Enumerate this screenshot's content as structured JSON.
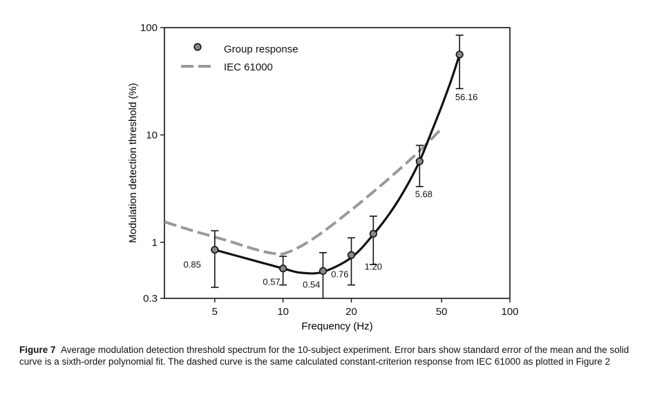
{
  "chart_data": {
    "type": "line",
    "xlabel": "Frequency (Hz)",
    "ylabel": "Modulation detection threshold (%)",
    "xscale": "log",
    "yscale": "log",
    "xlim": [
      3,
      100
    ],
    "ylim": [
      0.3,
      100
    ],
    "xticks": [
      5,
      10,
      20,
      50,
      100
    ],
    "yticks": [
      0.3,
      1,
      10,
      100
    ],
    "grid": false,
    "legend_position": "top-left",
    "series": [
      {
        "name": "Group response",
        "kind": "points-with-error-bars",
        "color": "#888888",
        "points": [
          {
            "x": 5,
            "y": 0.85,
            "err_low": 0.38,
            "err_high": 1.28,
            "label": "0.85"
          },
          {
            "x": 10,
            "y": 0.57,
            "err_low": 0.4,
            "err_high": 0.74,
            "label": "0.57"
          },
          {
            "x": 15,
            "y": 0.54,
            "err_low": 0.3,
            "err_high": 0.8,
            "label": "0.54"
          },
          {
            "x": 20,
            "y": 0.76,
            "err_low": 0.4,
            "err_high": 1.1,
            "label": "0.76"
          },
          {
            "x": 25,
            "y": 1.2,
            "err_low": 0.62,
            "err_high": 1.75,
            "label": "1.20"
          },
          {
            "x": 40,
            "y": 5.68,
            "err_low": 3.3,
            "err_high": 8.0,
            "label": "5.68"
          },
          {
            "x": 60,
            "y": 56.16,
            "err_low": 27.0,
            "err_high": 85.0,
            "label": "56.16"
          }
        ]
      },
      {
        "name": "Polynomial fit",
        "kind": "solid-curve",
        "color": "#111111",
        "x": [
          5,
          7,
          10,
          12,
          15,
          20,
          25,
          30,
          35,
          40,
          45,
          50,
          55,
          60
        ],
        "y": [
          0.85,
          0.7,
          0.57,
          0.52,
          0.53,
          0.72,
          1.18,
          1.95,
          3.3,
          5.7,
          10.5,
          18.5,
          32,
          56.16
        ]
      },
      {
        "name": "IEC 61000",
        "kind": "dashed-curve",
        "color": "#999999",
        "x": [
          3,
          4,
          5,
          6,
          7,
          8,
          9,
          10,
          12,
          15,
          20,
          25,
          30,
          40,
          50
        ],
        "y": [
          1.55,
          1.28,
          1.12,
          1.0,
          0.9,
          0.83,
          0.79,
          0.78,
          0.92,
          1.25,
          2.0,
          2.95,
          4.1,
          7.1,
          11.5
        ]
      }
    ]
  },
  "caption": {
    "lead": "Figure 7",
    "text": "Average modulation detection threshold spectrum for the 10-subject experiment. Error bars show standard error of the mean and the solid curve is a sixth-order polynomial fit. The dashed curve is the same calculated constant-criterion response from IEC 61000 as plotted in Figure 2"
  }
}
